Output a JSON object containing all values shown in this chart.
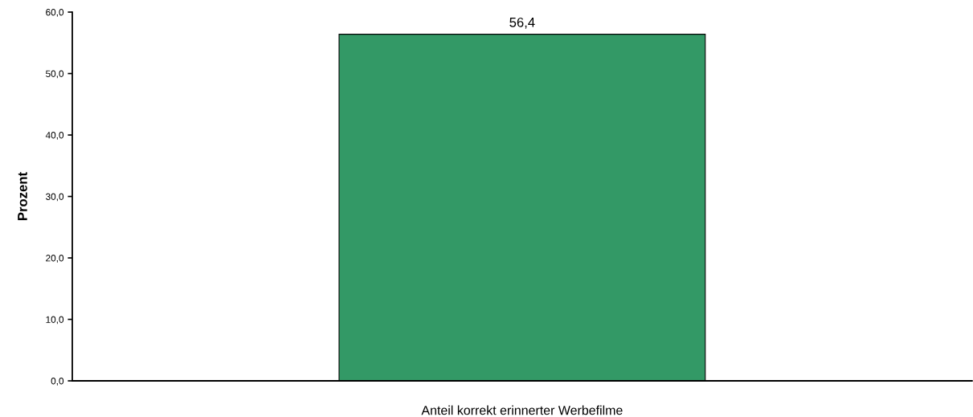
{
  "chart_data": {
    "type": "bar",
    "ylabel": "Prozent",
    "categories": [
      "Anteil korrekt erinnerter Werbefilme"
    ],
    "values": [
      56.4
    ],
    "color": "#339966",
    "value_labels": [
      "56,4"
    ],
    "ylim": [
      0,
      60
    ],
    "yticks": [
      {
        "value": 0,
        "label": "0,0"
      },
      {
        "value": 10,
        "label": "10,0"
      },
      {
        "value": 20,
        "label": "20,0"
      },
      {
        "value": 30,
        "label": "30,0"
      },
      {
        "value": 40,
        "label": "40,0"
      },
      {
        "value": 50,
        "label": "50,0"
      },
      {
        "value": 60,
        "label": "60,0"
      }
    ],
    "grid": false,
    "legend": false
  }
}
